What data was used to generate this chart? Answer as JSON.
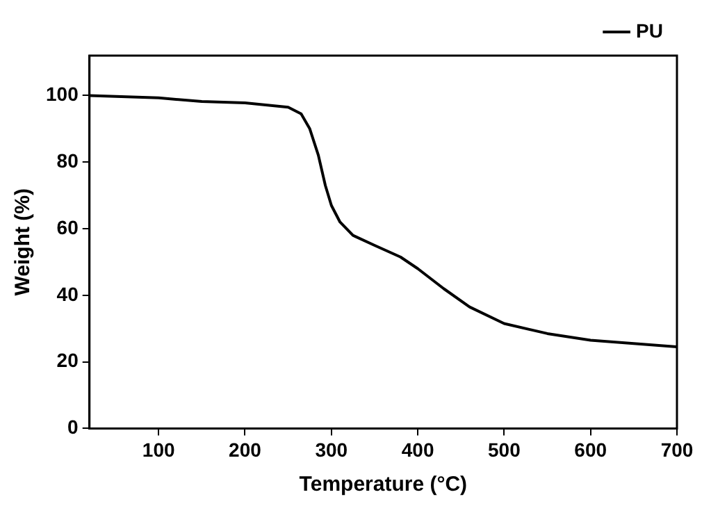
{
  "chart_data": {
    "type": "line",
    "xlabel": "Temperature (°C)",
    "ylabel": "Weight (%)",
    "xlim": [
      20,
      700
    ],
    "xticks": [
      100,
      200,
      300,
      400,
      500,
      600,
      700
    ],
    "ylim": [
      0,
      112
    ],
    "yticks": [
      0,
      20,
      40,
      60,
      80,
      100
    ],
    "x": [
      20,
      100,
      150,
      200,
      250,
      265,
      275,
      285,
      293,
      300,
      310,
      325,
      350,
      380,
      400,
      430,
      460,
      500,
      550,
      600,
      650,
      700
    ],
    "series": [
      {
        "name": "PU",
        "color": "#000000",
        "values": [
          100,
          99.3,
          98.2,
          97.8,
          96.5,
          94.5,
          90,
          82,
          73,
          67,
          62,
          58,
          55,
          51.5,
          48,
          42,
          36.5,
          31.5,
          28.5,
          26.5,
          25.5,
          24.5
        ]
      }
    ],
    "legend": "top right",
    "grid": false,
    "marker": "none",
    "line_style": "solid"
  }
}
